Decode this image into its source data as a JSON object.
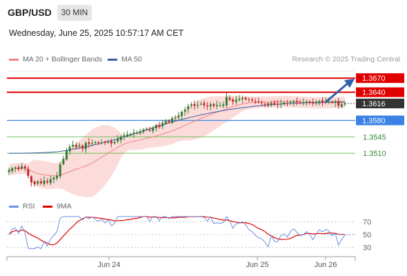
{
  "header": {
    "symbol": "GBP/USD",
    "timeframe": "30 MIN",
    "datetime": "Wednesday, June 25, 2025 10:57:17 AM CET"
  },
  "legend": {
    "bb_label": "MA 20 + Bollinger Bands",
    "ma50_label": "MA 50",
    "credit": "Research © 2025 Trading Central",
    "rsi_label": "RSI",
    "rsi_ma_label": "9MA"
  },
  "colors": {
    "up": "#2e7d32",
    "down": "#c62828",
    "bb_fill": "#fbd8d6",
    "ma20": "#f08080",
    "ma50": "#3a5ba0",
    "resistance": "#e00000",
    "support": "#3b82e6",
    "target": "#6bbf59",
    "rsi": "#6a8fe0",
    "rsi_ma": "#e00000"
  },
  "chart_data": [
    {
      "type": "candlestick",
      "ylim": [
        1.3425,
        1.3685
      ],
      "x_ticks": [
        "Jun 24",
        "Jun 25",
        "Jun 26"
      ],
      "current_price": "1.3616",
      "levels": [
        {
          "value": 1.367,
          "label": "1.3670",
          "kind": "resistance"
        },
        {
          "value": 1.364,
          "label": "1.3640",
          "kind": "resistance"
        },
        {
          "value": 1.358,
          "label": "1.3580",
          "kind": "pivot"
        },
        {
          "value": 1.3545,
          "label": "1.3545",
          "kind": "target"
        },
        {
          "value": 1.351,
          "label": "1.3510",
          "kind": "target"
        }
      ],
      "closes": [
        1.3474,
        1.3478,
        1.348,
        1.3476,
        1.3482,
        1.3478,
        1.3462,
        1.3448,
        1.3444,
        1.345,
        1.3446,
        1.3452,
        1.3448,
        1.3455,
        1.3458,
        1.3462,
        1.3486,
        1.3498,
        1.3516,
        1.3524,
        1.3528,
        1.3523,
        1.3527,
        1.352,
        1.3532,
        1.353,
        1.3532,
        1.3534,
        1.3532,
        1.3533,
        1.3532,
        1.3534,
        1.3531,
        1.3534,
        1.354,
        1.3545,
        1.3548,
        1.355,
        1.3551,
        1.3554,
        1.3553,
        1.3556,
        1.356,
        1.3562,
        1.3558,
        1.3564,
        1.357,
        1.3566,
        1.3574,
        1.3578,
        1.3576,
        1.3584,
        1.3586,
        1.359,
        1.3598,
        1.3603,
        1.361,
        1.3614,
        1.3611,
        1.3613,
        1.3615,
        1.3612,
        1.361,
        1.3614,
        1.3611,
        1.3613,
        1.3612,
        1.3614,
        1.363,
        1.3624,
        1.362,
        1.3624,
        1.3626,
        1.3628,
        1.3625,
        1.3624,
        1.3622,
        1.362,
        1.3619,
        1.3617,
        1.3615,
        1.3613,
        1.3617,
        1.3615,
        1.3614,
        1.3616,
        1.3618,
        1.3616,
        1.3619,
        1.3621,
        1.3619,
        1.3617,
        1.3618,
        1.362,
        1.3618,
        1.3616,
        1.3618,
        1.3621,
        1.3619,
        1.3621,
        1.362,
        1.3618,
        1.362,
        1.3611,
        1.3614,
        1.3616
      ],
      "ma50_start": 1.351,
      "ma50_end": 1.362,
      "axis_labels": [
        "1.3670",
        "1.3640",
        "1.3616",
        "1.3580",
        "1.3545",
        "1.3510"
      ]
    },
    {
      "type": "line",
      "name": "RSI",
      "ylim": [
        20,
        80
      ],
      "y_ticks": [
        "70",
        "50",
        "30"
      ],
      "rsi_ref": 50
    }
  ]
}
